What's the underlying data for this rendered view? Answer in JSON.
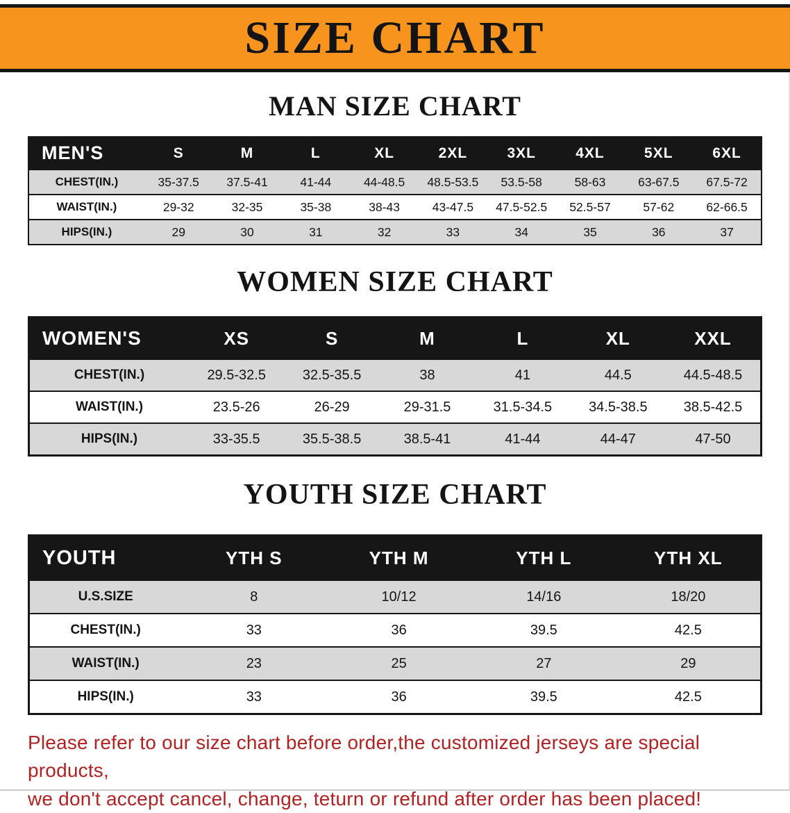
{
  "banner": {
    "title": "SIZE CHART",
    "bg_color": "#F7941D",
    "text_color": "#141414"
  },
  "chart_data": [
    {
      "type": "table",
      "title": "MAN SIZE CHART",
      "columns": [
        "MEN'S",
        "S",
        "M",
        "L",
        "XL",
        "2XL",
        "3XL",
        "4XL",
        "5XL",
        "6XL"
      ],
      "rows": [
        [
          "CHEST(IN.)",
          "35-37.5",
          "37.5-41",
          "41-44",
          "44-48.5",
          "48.5-53.5",
          "53.5-58",
          "58-63",
          "63-67.5",
          "67.5-72"
        ],
        [
          "WAIST(IN.)",
          "29-32",
          "32-35",
          "35-38",
          "38-43",
          "43-47.5",
          "47.5-52.5",
          "52.5-57",
          "57-62",
          "62-66.5"
        ],
        [
          "HIPS(IN.)",
          "29",
          "30",
          "31",
          "32",
          "33",
          "34",
          "35",
          "36",
          "37"
        ]
      ]
    },
    {
      "type": "table",
      "title": "WOMEN SIZE CHART",
      "columns": [
        "WOMEN'S",
        "XS",
        "S",
        "M",
        "L",
        "XL",
        "XXL"
      ],
      "rows": [
        [
          "CHEST(IN.)",
          "29.5-32.5",
          "32.5-35.5",
          "38",
          "41",
          "44.5",
          "44.5-48.5"
        ],
        [
          "WAIST(IN.)",
          "23.5-26",
          "26-29",
          "29-31.5",
          "31.5-34.5",
          "34.5-38.5",
          "38.5-42.5"
        ],
        [
          "HIPS(IN.)",
          "33-35.5",
          "35.5-38.5",
          "38.5-41",
          "41-44",
          "44-47",
          "47-50"
        ]
      ]
    },
    {
      "type": "table",
      "title": "YOUTH SIZE CHART",
      "columns": [
        "YOUTH",
        "YTH S",
        "YTH M",
        "YTH L",
        "YTH XL"
      ],
      "rows": [
        [
          "U.S.SIZE",
          "8",
          "10/12",
          "14/16",
          "18/20"
        ],
        [
          "CHEST(IN.)",
          "33",
          "36",
          "39.5",
          "42.5"
        ],
        [
          "WAIST(IN.)",
          "23",
          "25",
          "27",
          "29"
        ],
        [
          "HIPS(IN.)",
          "33",
          "36",
          "39.5",
          "42.5"
        ]
      ]
    }
  ],
  "footer": {
    "line1": "Please refer to our size chart before order,the customized jerseys are special products,",
    "line2": "we don't accept cancel, change, teturn or refund after order has been placed!",
    "text_color": "#b22222"
  }
}
